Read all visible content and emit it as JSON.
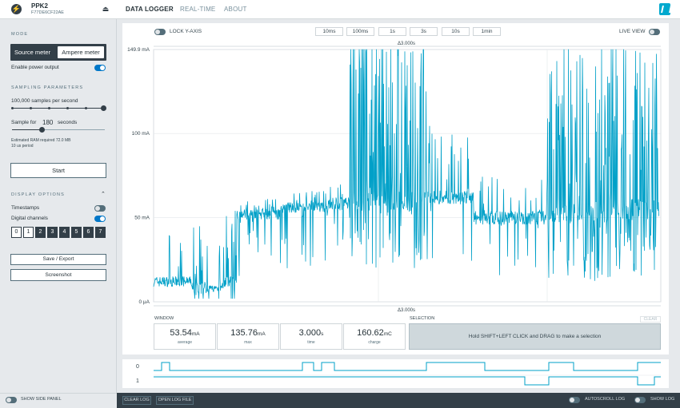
{
  "header": {
    "device_name": "PPK2",
    "device_serial": "F77DE6CF22AE",
    "tabs": [
      "DATA LOGGER",
      "REAL-TIME",
      "ABOUT"
    ]
  },
  "sidebar": {
    "mode_title": "MODE",
    "mode_source": "Source meter",
    "mode_ampere": "Ampere meter",
    "enable_power": "Enable power output",
    "sampling_title": "SAMPLING PARAMETERS",
    "samples_per_second": "100,000 samples per second",
    "sample_for_label": "Sample for",
    "sample_for_value": "180",
    "sample_for_unit": "seconds",
    "ram_note": "Estimated RAM required 72.0 MB",
    "period_note": "10 us period",
    "start_button": "Start",
    "display_title": "DISPLAY OPTIONS",
    "timestamps": "Timestamps",
    "digital_channels": "Digital channels",
    "channels": [
      "0",
      "1",
      "2",
      "3",
      "4",
      "5",
      "6",
      "7"
    ],
    "save_export": "Save / Export",
    "screenshot": "Screenshot"
  },
  "chart_toolbar": {
    "lock_y": "LOCK Y-AXIS",
    "zoom": [
      "10ms",
      "100ms",
      "1s",
      "3s",
      "10s",
      "1min"
    ],
    "live_view": "LIVE VIEW"
  },
  "chart_data": {
    "type": "line",
    "y_ticks": [
      "149.9 mA",
      "100 mA",
      "50 mA",
      "0 μA"
    ],
    "ylim": [
      0,
      149.9
    ],
    "xlim": [
      0,
      3.0
    ],
    "delta_top": "Δ3.000s",
    "delta_bottom": "Δ3.000s",
    "series": [
      {
        "color": "#00a0c8"
      }
    ]
  },
  "window": {
    "title": "WINDOW",
    "stats": [
      {
        "value": "53.54",
        "unit": "mA",
        "label": "average"
      },
      {
        "value": "135.76",
        "unit": "mA",
        "label": "max"
      },
      {
        "value": "3.000",
        "unit": "s",
        "label": "time"
      },
      {
        "value": "160.62",
        "unit": "mC",
        "label": "charge"
      }
    ]
  },
  "selection": {
    "title": "SELECTION",
    "clear": "CLEAR",
    "hint": "Hold SHIFT+LEFT CLICK and DRAG to make a selection"
  },
  "digital": {
    "ch0": "0",
    "ch1": "1"
  },
  "footer": {
    "show_side_panel": "SHOW SIDE PANEL",
    "clear_log": "CLEAR LOG",
    "open_log": "OPEN LOG FILE",
    "autoscroll": "AUTOSCROLL LOG",
    "show_log": "SHOW LOG"
  }
}
